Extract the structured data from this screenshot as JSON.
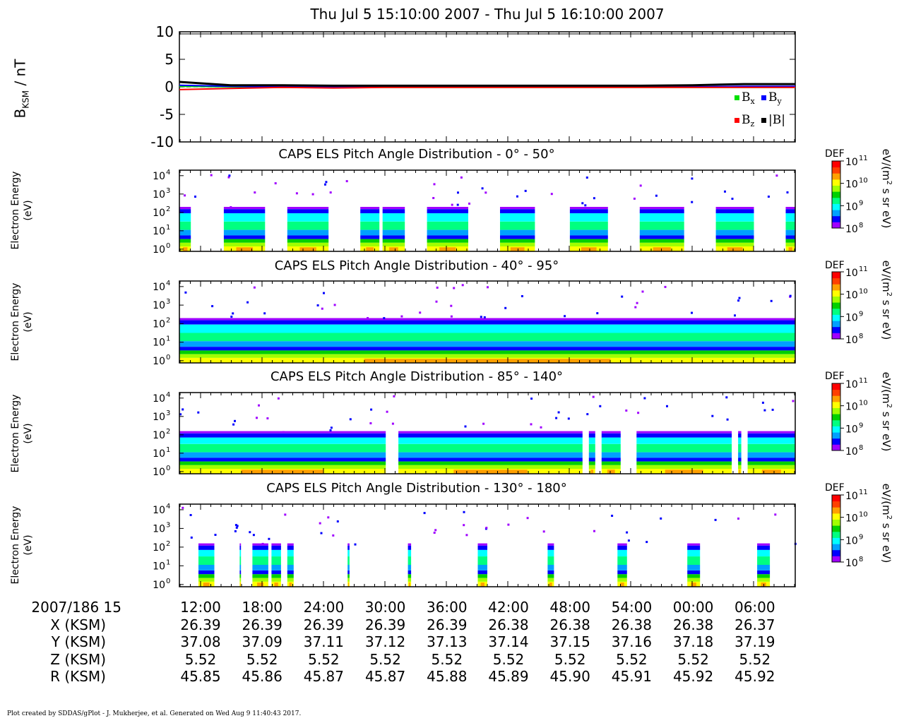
{
  "title": "Thu Jul 5 15:10:00 2007 - Thu Jul 5 16:10:00 2007",
  "colors": {
    "bx": "#00e000",
    "by": "#0000ff",
    "bz": "#ff0000",
    "btot": "#000000",
    "colormap": [
      "#a000ff",
      "#0000ff",
      "#00a0ff",
      "#00ffff",
      "#00ff80",
      "#00d000",
      "#a0ff00",
      "#ffff00",
      "#ffa000",
      "#ff4000",
      "#ff0000"
    ]
  },
  "chart_data": [
    {
      "type": "line",
      "ylabel": "B",
      "ylabel_sub": "KSM",
      "ylabel_unit": " / nT",
      "ylim": [
        -10,
        10
      ],
      "yticks": [
        "10",
        "5",
        "0",
        "-5",
        "-10"
      ],
      "ytick_values": [
        10,
        5,
        0,
        -5,
        -10
      ],
      "x": [
        "15:10",
        "15:15",
        "15:20",
        "15:25",
        "15:30",
        "15:35",
        "15:40",
        "15:45",
        "15:50",
        "15:55",
        "16:00",
        "16:05",
        "16:10"
      ],
      "legend": [
        {
          "symbol": "B",
          "sub": "x",
          "color": "#00e000"
        },
        {
          "symbol": "B",
          "sub": "y",
          "color": "#0000ff"
        },
        {
          "symbol": "B",
          "sub": "z",
          "color": "#ff0000"
        },
        {
          "symbol": "|B|",
          "sub": "",
          "color": "#000000"
        }
      ],
      "legend_position": "bottom-right",
      "series": [
        {
          "name": "Bx",
          "values": [
            0.1,
            0.0,
            -0.1,
            0.0,
            -0.1,
            -0.1,
            -0.1,
            -0.1,
            -0.1,
            -0.1,
            -0.1,
            -0.1,
            -0.1
          ]
        },
        {
          "name": "By",
          "values": [
            0.3,
            0.1,
            0.0,
            0.0,
            0.0,
            0.0,
            0.0,
            0.0,
            0.0,
            0.0,
            0.0,
            0.1,
            0.1
          ]
        },
        {
          "name": "Bz",
          "values": [
            -0.5,
            -0.3,
            -0.1,
            -0.2,
            -0.1,
            -0.1,
            -0.1,
            -0.1,
            -0.1,
            -0.1,
            -0.1,
            -0.1,
            -0.1
          ]
        },
        {
          "name": "|B|",
          "values": [
            0.9,
            0.3,
            0.3,
            0.2,
            0.2,
            0.2,
            0.2,
            0.2,
            0.2,
            0.2,
            0.3,
            0.5,
            0.5
          ]
        }
      ]
    },
    {
      "type": "heatmap",
      "title": "CAPS ELS Pitch Angle Distribution - 0° - 50°",
      "ylabel": [
        "Electron Energy",
        "(eV)"
      ],
      "ytick_exponents": [
        "4",
        "3",
        "2",
        "1",
        "0"
      ],
      "ytick_values": [
        10000,
        1000,
        100,
        10,
        1
      ],
      "colorbar": {
        "label": "DEF",
        "unit": "eV/(m",
        "unit_sup": "2",
        "unit_rest": " s sr eV)",
        "ticks": [
          "11",
          "10",
          "9",
          "8"
        ],
        "range": [
          100000000.0,
          100000000000.0
        ]
      },
      "energy_top_log": 2.3,
      "coverage_minutes": [
        [
          0,
          1.8
        ],
        [
          7,
          13.5
        ],
        [
          17,
          23.5
        ],
        [
          28.5,
          31.5
        ],
        [
          32,
          35.5
        ],
        [
          39,
          45.5
        ],
        [
          50.5,
          56
        ],
        [
          61.5,
          67.5
        ],
        [
          72.5,
          79.5
        ],
        [
          84.5,
          90.5
        ],
        [
          95.5,
          97
        ]
      ]
    },
    {
      "type": "heatmap",
      "title": "CAPS ELS Pitch Angle Distribution - 40° - 95°",
      "ylabel": [
        "Electron Energy",
        "(eV)"
      ],
      "ytick_exponents": [
        "4",
        "3",
        "2",
        "1",
        "0"
      ],
      "ytick_values": [
        10000,
        1000,
        100,
        10,
        1
      ],
      "colorbar": {
        "label": "DEF",
        "unit": "eV/(m",
        "unit_sup": "2",
        "unit_rest": " s sr eV)",
        "ticks": [
          "11",
          "10",
          "9",
          "8"
        ],
        "range": [
          100000000.0,
          100000000000.0
        ]
      },
      "energy_top_log": 2.3,
      "coverage_minutes": [
        [
          0,
          97
        ]
      ]
    },
    {
      "type": "heatmap",
      "title": "CAPS ELS Pitch Angle Distribution - 85° - 140°",
      "ylabel": [
        "Electron Energy",
        "(eV)"
      ],
      "ytick_exponents": [
        "4",
        "3",
        "2",
        "1",
        "0"
      ],
      "ytick_values": [
        10000,
        1000,
        100,
        10,
        1
      ],
      "colorbar": {
        "label": "DEF",
        "unit": "eV/(m",
        "unit_sup": "2",
        "unit_rest": " s sr eV)",
        "ticks": [
          "11",
          "10",
          "9",
          "8"
        ],
        "range": [
          100000000.0,
          100000000000.0
        ]
      },
      "energy_top_log": 2.2,
      "coverage_minutes": [
        [
          0,
          32.5
        ],
        [
          34.5,
          63.5
        ],
        [
          64.5,
          65.5
        ],
        [
          66.5,
          69.5
        ],
        [
          72,
          87
        ],
        [
          88,
          88.5
        ],
        [
          89.5,
          97
        ]
      ]
    },
    {
      "type": "heatmap",
      "title": "CAPS ELS Pitch Angle Distribution - 130° - 180°",
      "ylabel": [
        "Electron Energy",
        "(eV)"
      ],
      "ytick_exponents": [
        "4",
        "3",
        "2",
        "1",
        "0"
      ],
      "ytick_values": [
        10000,
        1000,
        100,
        10,
        1
      ],
      "colorbar": {
        "label": "DEF",
        "unit": "eV/(m",
        "unit_sup": "2",
        "unit_rest": " s sr eV)",
        "ticks": [
          "11",
          "10",
          "9",
          "8"
        ],
        "range": [
          100000000.0,
          100000000000.0
        ]
      },
      "energy_top_log": 2.2,
      "coverage_minutes": [
        [
          3,
          5.5
        ],
        [
          9.5,
          9.7
        ],
        [
          11.5,
          14
        ],
        [
          14.5,
          16
        ],
        [
          17,
          18
        ],
        [
          26.5,
          26.8
        ],
        [
          36,
          36.5
        ],
        [
          47,
          48.5
        ],
        [
          58,
          59
        ],
        [
          69,
          70.5
        ],
        [
          80,
          82
        ],
        [
          91,
          93
        ]
      ]
    }
  ],
  "table": {
    "rows": [
      {
        "label": "2007/186 15",
        "values": [
          "12:00",
          "18:00",
          "24:00",
          "30:00",
          "36:00",
          "42:00",
          "48:00",
          "54:00",
          "00:00",
          "06:00"
        ]
      },
      {
        "label": "X (KSM)",
        "values": [
          "26.39",
          "26.39",
          "26.39",
          "26.39",
          "26.39",
          "26.38",
          "26.38",
          "26.38",
          "26.38",
          "26.37"
        ]
      },
      {
        "label": "Y (KSM)",
        "values": [
          "37.08",
          "37.09",
          "37.11",
          "37.12",
          "37.13",
          "37.14",
          "37.15",
          "37.16",
          "37.18",
          "37.19"
        ]
      },
      {
        "label": "Z (KSM)",
        "values": [
          "5.52",
          "5.52",
          "5.52",
          "5.52",
          "5.52",
          "5.52",
          "5.52",
          "5.52",
          "5.52",
          "5.52"
        ]
      },
      {
        "label": "R (KSM)",
        "values": [
          "45.85",
          "45.86",
          "45.87",
          "45.87",
          "45.88",
          "45.89",
          "45.90",
          "45.91",
          "45.92",
          "45.92"
        ]
      }
    ]
  },
  "footer": "Plot created by SDDAS/gPlot - J. Mukherjee, et al.  Generated on Wed Aug 9 11:40:43 2017."
}
